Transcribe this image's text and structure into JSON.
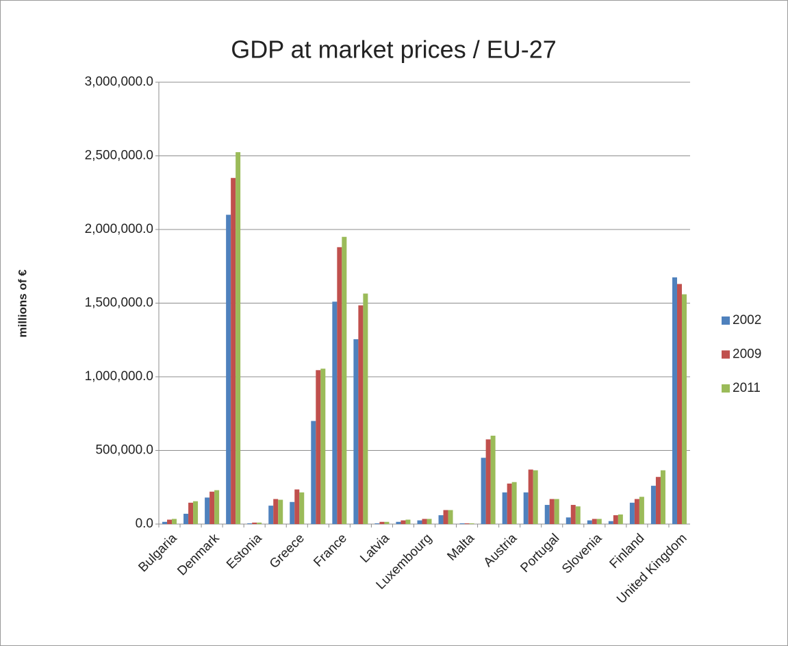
{
  "chart_data": {
    "type": "bar",
    "title": "GDP at market prices / EU-27",
    "ylabel": "millions of €",
    "categories": [
      "Bulgaria",
      null,
      "Denmark",
      null,
      "Estonia",
      null,
      "Greece",
      null,
      "France",
      null,
      "Latvia",
      null,
      "Luxembourg",
      null,
      "Malta",
      null,
      "Austria",
      null,
      "Portugal",
      null,
      "Slovenia",
      null,
      "Finland",
      null,
      "United Kingdom"
    ],
    "series": [
      {
        "name": "2002",
        "color": "#4f81bd",
        "values": [
          15000,
          70000,
          180000,
          2100000,
          5000,
          125000,
          150000,
          700000,
          1510000,
          1255000,
          5000,
          15000,
          25000,
          60000,
          5000,
          450000,
          215000,
          215000,
          130000,
          45000,
          25000,
          20000,
          145000,
          260000,
          1675000
        ]
      },
      {
        "name": "2009",
        "color": "#c0504d",
        "values": [
          30000,
          145000,
          220000,
          2350000,
          10000,
          170000,
          235000,
          1045000,
          1880000,
          1485000,
          15000,
          25000,
          35000,
          95000,
          5000,
          575000,
          275000,
          370000,
          170000,
          130000,
          35000,
          60000,
          170000,
          320000,
          1630000
        ]
      },
      {
        "name": "2011",
        "color": "#9bbb59",
        "values": [
          35000,
          155000,
          230000,
          2525000,
          10000,
          165000,
          215000,
          1055000,
          1950000,
          1565000,
          15000,
          30000,
          35000,
          95000,
          5000,
          600000,
          285000,
          365000,
          170000,
          120000,
          35000,
          65000,
          185000,
          365000,
          1560000
        ]
      }
    ],
    "ylim": [
      0,
      3000000
    ],
    "yticks": [
      {
        "value": 0,
        "label": "0.0"
      },
      {
        "value": 500000,
        "label": "500,000.0"
      },
      {
        "value": 1000000,
        "label": "1,000,000.0"
      },
      {
        "value": 1500000,
        "label": "1,500,000.0"
      },
      {
        "value": 2000000,
        "label": "2,000,000.0"
      },
      {
        "value": 2500000,
        "label": "2,500,000.0"
      },
      {
        "value": 3000000,
        "label": "3,000,000.0"
      }
    ],
    "grid": true,
    "legend": "right"
  }
}
